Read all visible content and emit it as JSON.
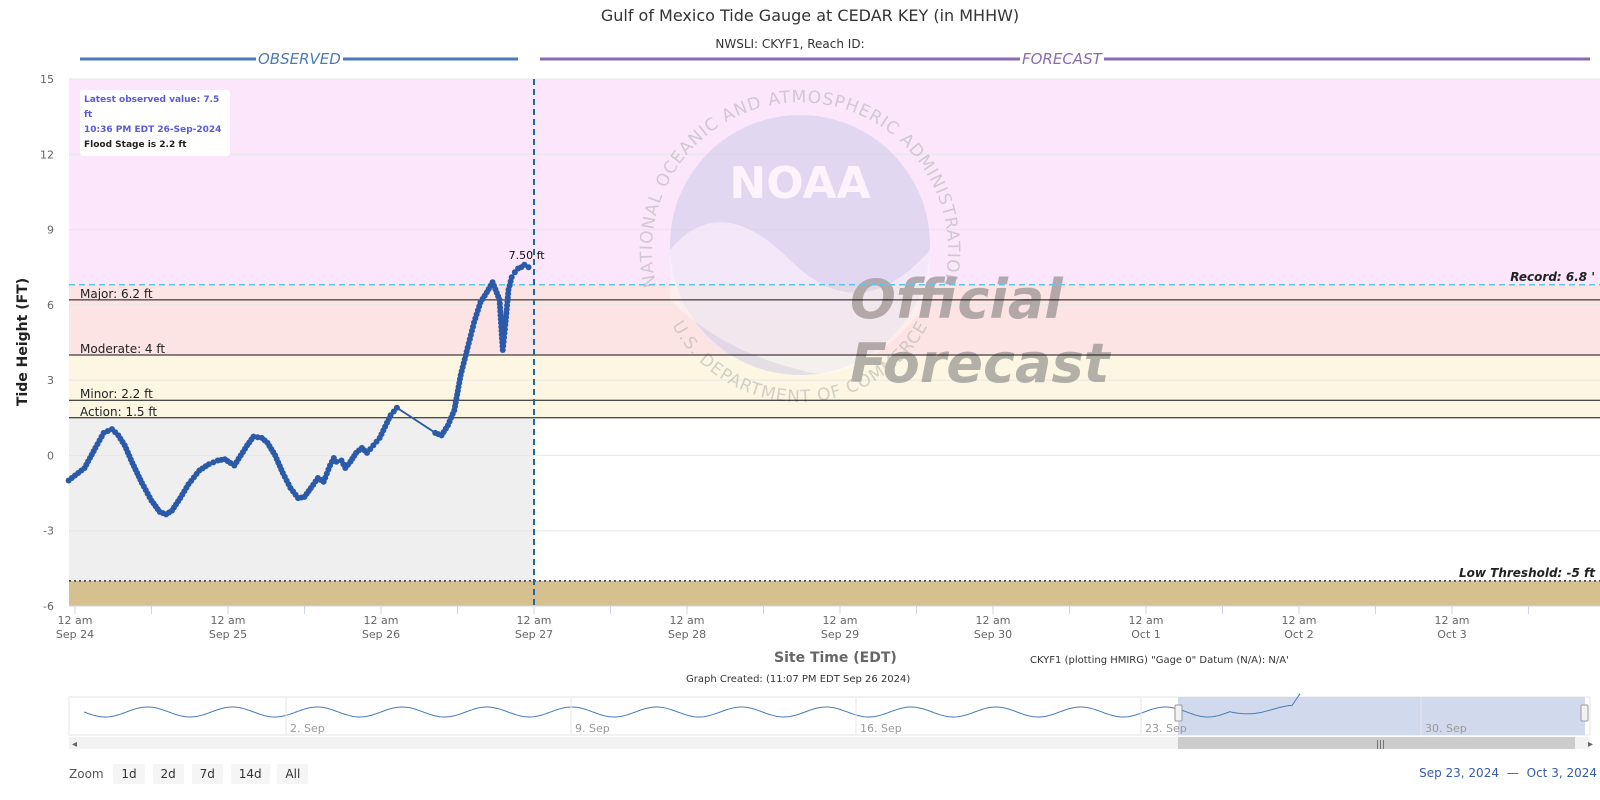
{
  "chart_data": {
    "type": "line",
    "title": "Gulf of Mexico Tide Gauge at CEDAR KEY (in MHHW)",
    "subtitle": "NWSLI: CKYF1, Reach ID:",
    "section_labels": {
      "observed": "OBSERVED",
      "forecast": "FORECAST"
    },
    "ylabel": "Tide Height (FT)",
    "xlabel": "Site Time (EDT)",
    "ylim": [
      -6,
      15
    ],
    "yticks": [
      -6,
      -3,
      0,
      3,
      6,
      9,
      12,
      15
    ],
    "xlim_hours": [
      -2,
      243
    ],
    "xticks": [
      {
        "t": 0,
        "l1": "12 am",
        "l2": "Sep 24"
      },
      {
        "t": 24,
        "l1": "12 am",
        "l2": "Sep 25"
      },
      {
        "t": 48,
        "l1": "12 am",
        "l2": "Sep 26"
      },
      {
        "t": 72,
        "l1": "12 am",
        "l2": "Sep 27"
      },
      {
        "t": 96,
        "l1": "12 am",
        "l2": "Sep 28"
      },
      {
        "t": 120,
        "l1": "12 am",
        "l2": "Sep 29"
      },
      {
        "t": 144,
        "l1": "12 am",
        "l2": "Sep 30"
      },
      {
        "t": 168,
        "l1": "12 am",
        "l2": "Oct 1"
      },
      {
        "t": 192,
        "l1": "12 am",
        "l2": "Oct 2"
      },
      {
        "t": 216,
        "l1": "12 am",
        "l2": "Oct 3"
      }
    ],
    "thresholds": [
      {
        "label": "Major: 6.2 ft",
        "value": 6.2
      },
      {
        "label": "Moderate: 4 ft",
        "value": 4
      },
      {
        "label": "Minor: 2.2 ft",
        "value": 2.2
      },
      {
        "label": "Action: 1.5 ft",
        "value": 1.5
      }
    ],
    "record": {
      "label": "Record: 6.8 '",
      "value": 6.8
    },
    "low_threshold": {
      "label": "Low Threshold: -5 ft",
      "value": -5
    },
    "bands": [
      {
        "from": 6.8,
        "to": 15,
        "color": "#fbe6fb"
      },
      {
        "from": 4,
        "to": 6.8,
        "color": "#fde4e4"
      },
      {
        "from": 1.5,
        "to": 4,
        "color": "#fdf6e2"
      },
      {
        "from": -6,
        "to": -5,
        "color": "#d7c08f"
      }
    ],
    "observed_shade_color": "#efefef",
    "line_color": "#2a5aa8",
    "now_line_color": "#1a6aa8",
    "record_line_color": "#5bc8e8",
    "now_hour": 72,
    "peak_label": "7.50 ft",
    "series": [
      {
        "name": "",
        "x_hours": [
          -1,
          1.5,
          3.2,
          4.5,
          5.8,
          6.8,
          7.8,
          9,
          10.5,
          12,
          13.3,
          14.3,
          15.2,
          16.5,
          17.8,
          19.5,
          21,
          22.4,
          23.5,
          24.4,
          25,
          26,
          27,
          28,
          29.3,
          30.2,
          31.4,
          32.6,
          33.8,
          35,
          36,
          37,
          38.1,
          39,
          40,
          40.6,
          41,
          41.8,
          42.4,
          43.2,
          44.1,
          45,
          45.8,
          46.8,
          47.8,
          49.5,
          50.5,
          56.5,
          57.5,
          58.5,
          59.5,
          60.5,
          61.6,
          62.6,
          63.6,
          64.6,
          65.5,
          66.6,
          67.1,
          67.5,
          68,
          68.5,
          69,
          69.5,
          70,
          70.5,
          71.15
        ],
        "values": [
          -1,
          -0.5,
          0.3,
          0.9,
          1.05,
          0.8,
          0.4,
          -0.3,
          -1.1,
          -1.8,
          -2.25,
          -2.35,
          -2.2,
          -1.7,
          -1.15,
          -0.6,
          -0.35,
          -0.2,
          -0.15,
          -0.3,
          -0.4,
          0,
          0.4,
          0.75,
          0.7,
          0.5,
          0,
          -0.7,
          -1.3,
          -1.7,
          -1.65,
          -1.3,
          -0.9,
          -1.05,
          -0.4,
          -0.1,
          -0.25,
          -0.2,
          -0.5,
          -0.25,
          0.1,
          0.3,
          0.1,
          0.4,
          0.7,
          1.6,
          1.9,
          0.9,
          0.8,
          1.2,
          1.8,
          3.2,
          4.3,
          5.3,
          6.1,
          6.5,
          6.9,
          6.2,
          4.2,
          5.2,
          6.6,
          7.1,
          7.3,
          7.45,
          7.5,
          7.6,
          7.5
        ]
      }
    ],
    "latest_observed": "Latest observed value: 7.5 ft",
    "latest_time": "10:36 PM EDT 26-Sep-2024",
    "flood_stage": "Flood Stage is 2.2 ft"
  },
  "watermark": {
    "logo_text": "NOAA",
    "ring_text_top": "NATIONAL OCEANIC AND ATMOSPHERIC ADMINISTRATION",
    "ring_text_bottom": "U.S. DEPARTMENT OF COMMERCE",
    "stamp_line1": "Official",
    "stamp_line2": "Forecast"
  },
  "footer": {
    "datum_note": "CKYF1 (plotting HMIRG) \"Gage 0\" Datum (N/A): N/A'",
    "graph_created": "Graph Created: (11:07 PM EDT Sep 26 2024)"
  },
  "navigator": {
    "labels": [
      "2. Sep",
      "9. Sep",
      "16. Sep",
      "23. Sep",
      "30. Sep"
    ],
    "selected_from": "Sep 23",
    "selected_to": "Oct 3"
  },
  "zoom": {
    "label": "Zoom",
    "buttons": [
      "1d",
      "2d",
      "7d",
      "14d",
      "All"
    ]
  },
  "range_display": {
    "from": "Sep 23, 2024",
    "dash": "—",
    "to": "Oct 3, 2024"
  }
}
